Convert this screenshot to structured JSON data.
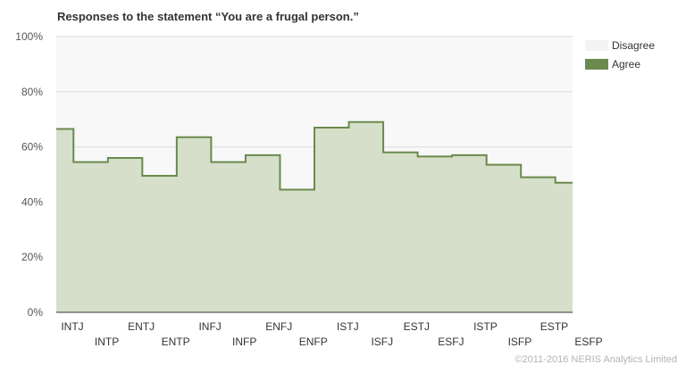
{
  "chart_data": {
    "type": "area",
    "title": "Responses to the statement “You are a frugal person.”",
    "categories": [
      "INTJ",
      "INTP",
      "ENTJ",
      "ENTP",
      "INFJ",
      "INFP",
      "ENFJ",
      "ENFP",
      "ISTJ",
      "ISFJ",
      "ESTJ",
      "ESFJ",
      "ISTP",
      "ISFP",
      "ESTP",
      "ESFP"
    ],
    "series": [
      {
        "name": "Agree",
        "color": "#6b8a4e",
        "values": [
          66.5,
          54.5,
          56,
          49.5,
          63.5,
          54.5,
          57,
          44.5,
          67,
          69,
          58,
          56.5,
          57,
          53.5,
          49,
          47
        ]
      },
      {
        "name": "Disagree",
        "color": "#f4f4f4"
      }
    ],
    "ylim": [
      0,
      100
    ],
    "yticks": [
      "0%",
      "20%",
      "40%",
      "60%",
      "80%",
      "100%"
    ],
    "grid": true,
    "legend_position": "top-right",
    "fill_color": "#d5dfca",
    "plot_bg": "#f8f8f8"
  },
  "legend": {
    "disagree_label": "Disagree",
    "agree_label": "Agree"
  },
  "credit": "©2011-2016 NERIS Analytics Limited"
}
